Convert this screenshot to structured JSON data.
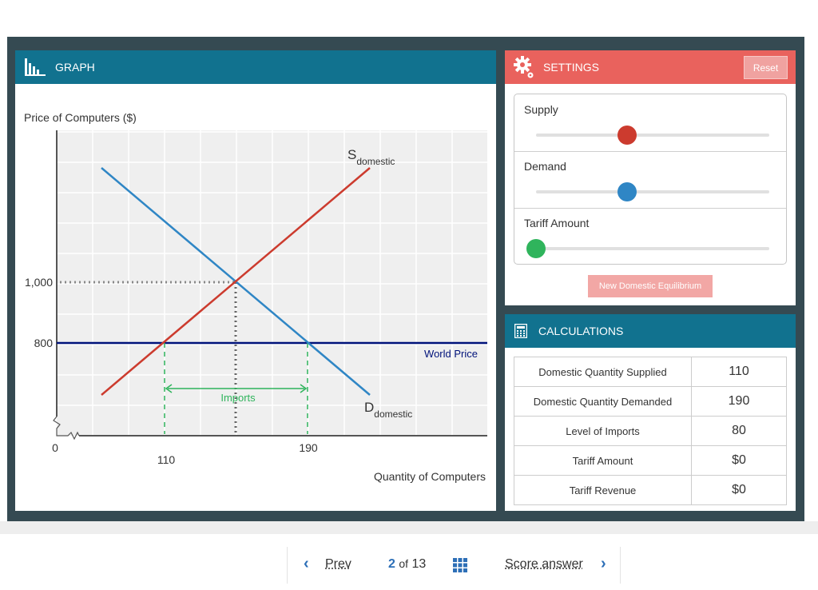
{
  "graph": {
    "title": "GRAPH",
    "y_axis_label": "Price of Computers ($)",
    "x_axis_label": "Quantity of Computers",
    "y_ticks": [
      "1,000",
      "800"
    ],
    "x_ticks": [
      "0",
      "110",
      "190"
    ],
    "supply_label": {
      "main": "S",
      "sub": "domestic"
    },
    "demand_label": {
      "main": "D",
      "sub": "domestic"
    },
    "world_price_label": "World Price",
    "imports_label": "Imports"
  },
  "settings": {
    "title": "SETTINGS",
    "reset_label": "Reset",
    "sliders": [
      {
        "label": "Supply",
        "level": 0.39,
        "color": "#cc3b2e"
      },
      {
        "label": "Demand",
        "level": 0.39,
        "color": "#2f86c5"
      },
      {
        "label": "Tariff Amount",
        "level": 0,
        "color": "#2fb45c"
      }
    ],
    "new_eq_label": "New Domestic Equilibrium"
  },
  "calculations": {
    "title": "CALCULATIONS",
    "rows": [
      {
        "name": "Domestic Quantity Supplied",
        "value": "110"
      },
      {
        "name": "Domestic Quantity Demanded",
        "value": "190"
      },
      {
        "name": "Level of Imports",
        "value": "80"
      },
      {
        "name": "Tariff Amount",
        "value": "$0"
      },
      {
        "name": "Tariff Revenue",
        "value": "$0"
      }
    ]
  },
  "nav": {
    "prev_label": "Prev",
    "page_current": "2",
    "page_of": "of",
    "page_total": "13",
    "score_label": "Score answer"
  },
  "colors": {
    "supply": "#cc3b2e",
    "demand": "#2f86c5",
    "world_price": "#00127a",
    "imports": "#2fb45c",
    "header_blue": "#11728f",
    "header_red": "#e9625d",
    "frame": "#354a52"
  }
}
